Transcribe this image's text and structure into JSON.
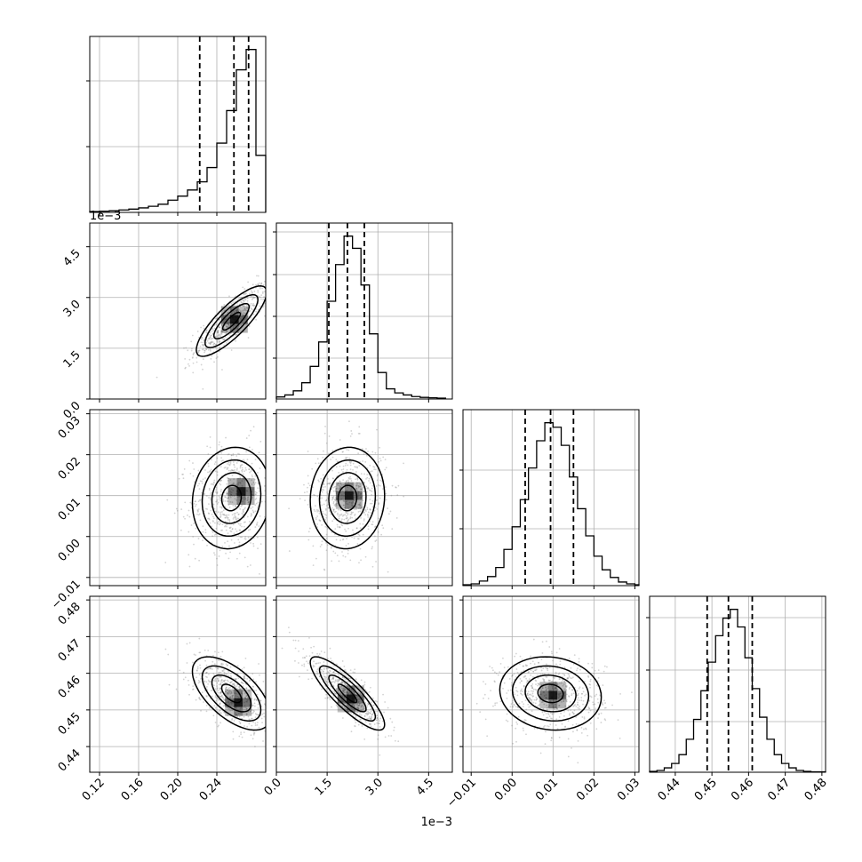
{
  "chart_data": {
    "type": "corner",
    "grid": true,
    "colors": {
      "mark": "#000000",
      "grid": "#b0b0b0",
      "scatter": "#808080"
    },
    "parameters": [
      {
        "range": [
          0.11,
          0.29
        ],
        "offset_label": "",
        "tick_values": [
          0.12,
          0.16,
          0.2,
          0.24
        ],
        "tick_labels": [
          "0.12",
          "0.16",
          "0.20",
          "0.24"
        ]
      },
      {
        "range": [
          0.0,
          5.2
        ],
        "offset_label": "1e−3",
        "tick_values": [
          0.0,
          1.5,
          3.0,
          4.5
        ],
        "tick_labels": [
          "0.0",
          "1.5",
          "3.0",
          "4.5"
        ]
      },
      {
        "range": [
          -0.012,
          0.031
        ],
        "offset_label": "",
        "tick_values": [
          -0.01,
          0.0,
          0.01,
          0.02,
          0.03
        ],
        "tick_labels": [
          "−0.01",
          "0.00",
          "0.01",
          "0.02",
          "0.03"
        ]
      },
      {
        "range": [
          0.433,
          0.481
        ],
        "offset_label": "",
        "tick_values": [
          0.44,
          0.45,
          0.46,
          0.47,
          0.48
        ],
        "tick_labels": [
          "0.44",
          "0.45",
          "0.46",
          "0.47",
          "0.48"
        ]
      }
    ],
    "diagonal_histograms": [
      {
        "bin_edges": [
          0.11,
          0.12,
          0.13,
          0.14,
          0.15,
          0.16,
          0.17,
          0.18,
          0.19,
          0.2,
          0.21,
          0.22,
          0.23,
          0.24,
          0.25,
          0.26,
          0.27,
          0.28,
          0.29
        ],
        "counts": [
          2,
          3,
          4,
          6,
          8,
          11,
          15,
          20,
          30,
          40,
          55,
          75,
          110,
          170,
          250,
          350,
          400,
          140
        ],
        "quantiles": [
          0.2225,
          0.2575,
          0.2725
        ]
      },
      {
        "bin_edges": [
          0.0,
          0.25,
          0.5,
          0.75,
          1.0,
          1.25,
          1.5,
          1.75,
          2.0,
          2.25,
          2.5,
          2.75,
          3.0,
          3.25,
          3.5,
          3.75,
          4.0,
          4.25,
          4.5,
          4.75,
          5.0
        ],
        "counts": [
          5,
          10,
          20,
          40,
          80,
          140,
          240,
          330,
          400,
          370,
          280,
          160,
          65,
          25,
          15,
          10,
          6,
          4,
          3,
          2
        ],
        "quantiles": [
          1.55,
          2.1,
          2.6
        ]
      },
      {
        "bin_edges": [
          -0.012,
          -0.01,
          -0.008,
          -0.006,
          -0.004,
          -0.002,
          0.0,
          0.002,
          0.004,
          0.006,
          0.008,
          0.01,
          0.012,
          0.014,
          0.016,
          0.018,
          0.02,
          0.022,
          0.024,
          0.026,
          0.028,
          0.03,
          0.031
        ],
        "counts": [
          2,
          4,
          10,
          20,
          40,
          80,
          130,
          190,
          260,
          320,
          360,
          350,
          310,
          240,
          170,
          110,
          65,
          35,
          18,
          8,
          4,
          2
        ],
        "quantiles": [
          0.0032,
          0.0094,
          0.015
        ]
      },
      {
        "bin_edges": [
          0.433,
          0.435,
          0.437,
          0.439,
          0.441,
          0.443,
          0.445,
          0.447,
          0.449,
          0.451,
          0.453,
          0.455,
          0.457,
          0.459,
          0.461,
          0.463,
          0.465,
          0.467,
          0.469,
          0.471,
          0.473,
          0.475,
          0.477,
          0.479,
          0.481
        ],
        "counts": [
          2,
          4,
          10,
          20,
          40,
          75,
          120,
          185,
          250,
          310,
          350,
          370,
          330,
          260,
          190,
          125,
          75,
          40,
          20,
          10,
          4,
          2,
          1,
          1
        ],
        "quantiles": [
          0.4487,
          0.4545,
          0.461
        ]
      }
    ],
    "pair_densities": [
      {
        "x_param": 0,
        "y_param": 1,
        "mean": [
          0.255,
          2.3
        ],
        "sd": [
          0.018,
          0.52
        ],
        "corr": 0.82,
        "peak": [
          0.258,
          2.35
        ],
        "contour_levels": [
          0.5,
          1.0,
          1.5,
          2.0
        ]
      },
      {
        "x_param": 0,
        "y_param": 2,
        "mean": [
          0.255,
          0.0094
        ],
        "sd": [
          0.02,
          0.0062
        ],
        "corr": 0.1,
        "peak": [
          0.265,
          0.011
        ],
        "contour_levels": [
          0.5,
          1.0,
          1.5,
          2.0
        ]
      },
      {
        "x_param": 1,
        "y_param": 2,
        "mean": [
          2.1,
          0.0094
        ],
        "sd": [
          0.55,
          0.0062
        ],
        "corr": 0.05,
        "peak": [
          2.15,
          0.01
        ],
        "contour_levels": [
          0.5,
          1.0,
          1.5,
          2.0
        ]
      },
      {
        "x_param": 0,
        "y_param": 3,
        "mean": [
          0.255,
          0.4545
        ],
        "sd": [
          0.02,
          0.005
        ],
        "corr": -0.6,
        "peak": [
          0.262,
          0.452
        ],
        "contour_levels": [
          0.5,
          1.0,
          1.5,
          2.0
        ]
      },
      {
        "x_param": 1,
        "y_param": 3,
        "mean": [
          2.1,
          0.4545
        ],
        "sd": [
          0.55,
          0.005
        ],
        "corr": -0.85,
        "peak": [
          2.2,
          0.453
        ],
        "contour_levels": [
          0.5,
          1.0,
          1.5,
          2.0
        ]
      },
      {
        "x_param": 2,
        "y_param": 3,
        "mean": [
          0.0094,
          0.4545
        ],
        "sd": [
          0.0062,
          0.005
        ],
        "corr": -0.1,
        "peak": [
          0.01,
          0.454
        ],
        "contour_levels": [
          0.5,
          1.0,
          1.5,
          2.0
        ]
      }
    ]
  }
}
